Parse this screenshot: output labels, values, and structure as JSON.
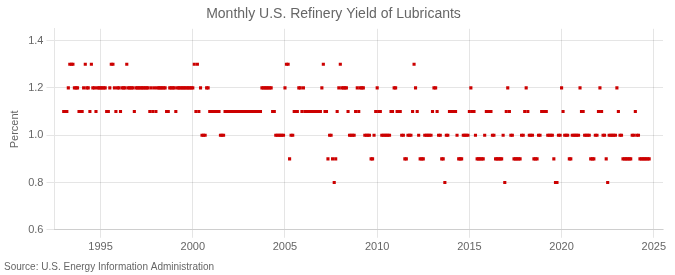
{
  "chart_data": {
    "type": "scatter",
    "title": "Monthly U.S. Refinery Yield of Lubricants",
    "ylabel": "Percent",
    "source": "Source: U.S. Energy Information Administration",
    "color": "#cc0000",
    "marker": "square",
    "grid": true,
    "xlim": [
      1992.5,
      2025.5
    ],
    "xticks": [
      1995,
      2000,
      2005,
      2010,
      2015,
      2020,
      2025
    ],
    "ylim": [
      0.6,
      1.45
    ],
    "yticks": [
      0.6,
      0.8,
      {
        "value": 1.0,
        "label": "1.0"
      },
      1.2,
      1.4
    ],
    "x": [
      1993.0,
      1993.08,
      1993.17,
      1993.25,
      1993.33,
      1993.42,
      1993.5,
      1993.58,
      1993.67,
      1993.75,
      1993.83,
      1993.92,
      1994.0,
      1994.08,
      1994.17,
      1994.25,
      1994.33,
      1994.42,
      1994.5,
      1994.58,
      1994.67,
      1994.75,
      1994.83,
      1994.92,
      1995.0,
      1995.08,
      1995.17,
      1995.25,
      1995.33,
      1995.42,
      1995.5,
      1995.58,
      1995.67,
      1995.75,
      1995.83,
      1995.92,
      1996.0,
      1996.08,
      1996.17,
      1996.25,
      1996.33,
      1996.42,
      1996.5,
      1996.58,
      1996.67,
      1996.75,
      1996.83,
      1996.92,
      1997.0,
      1997.08,
      1997.17,
      1997.25,
      1997.33,
      1997.42,
      1997.5,
      1997.58,
      1997.67,
      1997.75,
      1997.83,
      1997.92,
      1998.0,
      1998.08,
      1998.17,
      1998.25,
      1998.33,
      1998.42,
      1998.5,
      1998.58,
      1998.67,
      1998.75,
      1998.83,
      1998.92,
      1999.0,
      1999.08,
      1999.17,
      1999.25,
      1999.33,
      1999.42,
      1999.5,
      1999.58,
      1999.67,
      1999.75,
      1999.83,
      1999.92,
      2000.0,
      2000.08,
      2000.17,
      2000.25,
      2000.33,
      2000.42,
      2000.5,
      2000.58,
      2000.67,
      2000.75,
      2000.83,
      2000.92,
      2001.0,
      2001.08,
      2001.17,
      2001.25,
      2001.33,
      2001.42,
      2001.5,
      2001.58,
      2001.67,
      2001.75,
      2001.83,
      2001.92,
      2002.0,
      2002.08,
      2002.17,
      2002.25,
      2002.33,
      2002.42,
      2002.5,
      2002.58,
      2002.67,
      2002.75,
      2002.83,
      2002.92,
      2003.0,
      2003.08,
      2003.17,
      2003.25,
      2003.33,
      2003.42,
      2003.5,
      2003.58,
      2003.67,
      2003.75,
      2003.83,
      2003.92,
      2004.0,
      2004.08,
      2004.17,
      2004.25,
      2004.33,
      2004.42,
      2004.5,
      2004.58,
      2004.67,
      2004.75,
      2004.83,
      2004.92,
      2005.0,
      2005.08,
      2005.17,
      2005.25,
      2005.33,
      2005.42,
      2005.5,
      2005.58,
      2005.67,
      2005.75,
      2005.83,
      2005.92,
      2006.0,
      2006.08,
      2006.17,
      2006.25,
      2006.33,
      2006.42,
      2006.5,
      2006.58,
      2006.67,
      2006.75,
      2006.83,
      2006.92,
      2007.0,
      2007.08,
      2007.17,
      2007.25,
      2007.33,
      2007.42,
      2007.5,
      2007.58,
      2007.67,
      2007.75,
      2007.83,
      2007.92,
      2008.0,
      2008.08,
      2008.17,
      2008.25,
      2008.33,
      2008.42,
      2008.5,
      2008.58,
      2008.67,
      2008.75,
      2008.83,
      2008.92,
      2009.0,
      2009.08,
      2009.17,
      2009.25,
      2009.33,
      2009.42,
      2009.5,
      2009.58,
      2009.67,
      2009.75,
      2009.83,
      2009.92,
      2010.0,
      2010.08,
      2010.17,
      2010.25,
      2010.33,
      2010.42,
      2010.5,
      2010.58,
      2010.67,
      2010.75,
      2010.83,
      2010.92,
      2011.0,
      2011.08,
      2011.17,
      2011.25,
      2011.33,
      2011.42,
      2011.5,
      2011.58,
      2011.67,
      2011.75,
      2011.83,
      2011.92,
      2012.0,
      2012.08,
      2012.17,
      2012.25,
      2012.33,
      2012.42,
      2012.5,
      2012.58,
      2012.67,
      2012.75,
      2012.83,
      2012.92,
      2013.0,
      2013.08,
      2013.17,
      2013.25,
      2013.33,
      2013.42,
      2013.5,
      2013.58,
      2013.67,
      2013.75,
      2013.83,
      2013.92,
      2014.0,
      2014.08,
      2014.17,
      2014.25,
      2014.33,
      2014.42,
      2014.5,
      2014.58,
      2014.67,
      2014.75,
      2014.83,
      2014.92,
      2015.0,
      2015.08,
      2015.17,
      2015.25,
      2015.33,
      2015.42,
      2015.5,
      2015.58,
      2015.67,
      2015.75,
      2015.83,
      2015.92,
      2016.0,
      2016.08,
      2016.17,
      2016.25,
      2016.33,
      2016.42,
      2016.5,
      2016.58,
      2016.67,
      2016.75,
      2016.83,
      2016.92,
      2017.0,
      2017.08,
      2017.17,
      2017.25,
      2017.33,
      2017.42,
      2017.5,
      2017.58,
      2017.67,
      2017.75,
      2017.83,
      2017.92,
      2018.0,
      2018.08,
      2018.17,
      2018.25,
      2018.33,
      2018.42,
      2018.5,
      2018.58,
      2018.67,
      2018.75,
      2018.83,
      2018.92,
      2019.0,
      2019.08,
      2019.17,
      2019.25,
      2019.33,
      2019.42,
      2019.5,
      2019.58,
      2019.67,
      2019.75,
      2019.83,
      2019.92,
      2020.0,
      2020.08,
      2020.17,
      2020.25,
      2020.33,
      2020.42,
      2020.5,
      2020.58,
      2020.67,
      2020.75,
      2020.83,
      2020.92,
      2021.0,
      2021.08,
      2021.17,
      2021.25,
      2021.33,
      2021.42,
      2021.5,
      2021.58,
      2021.67,
      2021.75,
      2021.83,
      2021.92,
      2022.0,
      2022.08,
      2022.17,
      2022.25,
      2022.33,
      2022.42,
      2022.5,
      2022.58,
      2022.67,
      2022.75,
      2022.83,
      2022.92,
      2023.0,
      2023.08,
      2023.17,
      2023.25,
      2023.33,
      2023.42,
      2023.5,
      2023.58,
      2023.67,
      2023.75,
      2023.83,
      2023.92,
      2024.0,
      2024.08,
      2024.17,
      2024.25,
      2024.33,
      2024.42,
      2024.5,
      2024.58,
      2024.67,
      2024.75
    ],
    "values": [
      1.1,
      1.1,
      1.1,
      1.2,
      1.3,
      1.3,
      1.3,
      1.2,
      1.2,
      1.2,
      1.1,
      1.1,
      1.1,
      1.2,
      1.3,
      1.2,
      1.2,
      1.1,
      1.3,
      1.2,
      1.2,
      1.1,
      1.2,
      1.2,
      1.2,
      1.2,
      1.2,
      1.2,
      1.1,
      1.1,
      1.2,
      1.3,
      1.3,
      1.2,
      1.1,
      1.2,
      1.2,
      1.1,
      1.2,
      1.2,
      1.2,
      1.3,
      1.2,
      1.2,
      1.2,
      1.2,
      1.1,
      1.2,
      1.2,
      1.2,
      1.2,
      1.2,
      1.2,
      1.2,
      1.2,
      1.2,
      1.1,
      1.2,
      1.1,
      1.2,
      1.1,
      1.2,
      1.2,
      1.2,
      1.2,
      1.2,
      1.2,
      1.1,
      1.1,
      1.2,
      1.2,
      1.2,
      1.2,
      1.1,
      1.2,
      1.2,
      1.2,
      1.2,
      1.2,
      1.2,
      1.2,
      1.2,
      1.2,
      1.2,
      1.2,
      1.3,
      1.1,
      1.3,
      1.1,
      1.2,
      1.0,
      1.0,
      1.0,
      1.2,
      1.2,
      1.1,
      1.1,
      1.1,
      1.1,
      1.1,
      1.1,
      1.1,
      1.0,
      1.0,
      1.0,
      1.1,
      1.1,
      1.1,
      1.1,
      1.1,
      1.1,
      1.1,
      1.1,
      1.1,
      1.1,
      1.1,
      1.1,
      1.1,
      1.1,
      1.1,
      1.1,
      1.1,
      1.1,
      1.1,
      1.1,
      1.1,
      1.1,
      1.1,
      1.1,
      1.2,
      1.2,
      1.2,
      1.2,
      1.2,
      1.2,
      1.2,
      1.1,
      1.1,
      1.0,
      1.0,
      1.0,
      1.0,
      1.0,
      1.0,
      1.2,
      1.3,
      1.3,
      0.9,
      1.0,
      1.0,
      1.1,
      1.1,
      1.1,
      1.2,
      1.2,
      1.1,
      1.2,
      1.1,
      1.1,
      1.1,
      1.1,
      1.1,
      1.1,
      1.1,
      1.1,
      1.1,
      1.1,
      1.1,
      1.2,
      1.3,
      1.1,
      1.1,
      0.9,
      1.0,
      1.0,
      0.9,
      0.8,
      0.9,
      1.1,
      1.2,
      1.3,
      1.2,
      1.2,
      1.2,
      1.2,
      1.1,
      1.0,
      1.0,
      1.0,
      1.0,
      1.1,
      1.2,
      1.1,
      1.2,
      1.2,
      1.2,
      1.0,
      1.0,
      1.0,
      1.0,
      0.9,
      0.9,
      1.0,
      1.1,
      1.2,
      1.1,
      1.1,
      1.0,
      1.0,
      1.0,
      1.0,
      1.0,
      1.0,
      1.1,
      1.1,
      1.2,
      1.2,
      1.1,
      1.1,
      1.1,
      1.0,
      1.0,
      0.9,
      0.9,
      1.0,
      1.0,
      1.0,
      1.1,
      1.3,
      1.2,
      1.1,
      1.0,
      0.9,
      0.9,
      0.9,
      1.0,
      1.0,
      1.0,
      1.0,
      1.0,
      1.1,
      1.2,
      1.2,
      1.1,
      1.0,
      1.0,
      0.9,
      0.9,
      0.8,
      1.0,
      1.0,
      1.1,
      1.1,
      1.1,
      1.1,
      1.1,
      1.0,
      0.9,
      0.9,
      0.9,
      1.0,
      1.0,
      1.0,
      1.0,
      1.1,
      1.2,
      1.1,
      1.1,
      1.0,
      0.9,
      0.9,
      0.9,
      0.9,
      0.9,
      1.0,
      1.1,
      1.1,
      1.1,
      1.1,
      1.0,
      1.0,
      0.9,
      0.9,
      0.9,
      0.9,
      0.9,
      1.0,
      0.8,
      1.1,
      1.2,
      1.1,
      1.0,
      1.0,
      0.9,
      0.9,
      0.9,
      0.9,
      0.9,
      1.0,
      1.0,
      1.1,
      1.2,
      1.1,
      1.0,
      1.0,
      1.0,
      0.9,
      0.9,
      0.9,
      1.0,
      1.0,
      1.1,
      1.1,
      1.1,
      1.1,
      1.0,
      1.0,
      1.0,
      1.0,
      0.9,
      0.8,
      0.8,
      1.0,
      1.0,
      1.2,
      1.1,
      1.0,
      1.0,
      1.0,
      0.9,
      0.9,
      1.0,
      1.0,
      1.0,
      1.0,
      1.0,
      1.2,
      1.1,
      1.1,
      1.0,
      1.0,
      1.0,
      1.0,
      0.9,
      0.9,
      0.9,
      1.0,
      1.0,
      1.1,
      1.2,
      1.1,
      1.0,
      1.0,
      0.9,
      0.8,
      1.0,
      1.0,
      1.0,
      1.0,
      1.0,
      1.2,
      1.1,
      1.0,
      1.0,
      0.9,
      0.9,
      0.9,
      0.9,
      0.9,
      0.9,
      1.0,
      1.0,
      1.1,
      1.0,
      1.0,
      0.9,
      0.9,
      0.9,
      0.9,
      0.9,
      0.9,
      0.9
    ]
  }
}
